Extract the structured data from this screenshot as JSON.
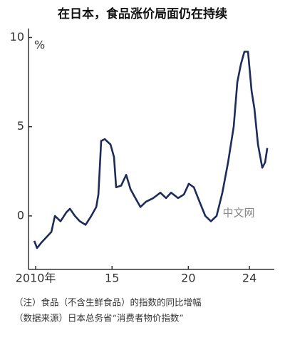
{
  "chart_data": {
    "type": "line",
    "title": "在日本，食品涨价局面仍在持续",
    "y_unit": "%",
    "notes": [
      "（注）食品（不含生鲜食品）的指数的同比增幅",
      "（数据来源）日本总务省“消费者物价指数”"
    ],
    "watermark": "中文网",
    "xlim": [
      2009.53,
      2025.63
    ],
    "xticks": [
      {
        "value": 2010,
        "label": "2010年"
      },
      {
        "value": 2015,
        "label": "15"
      },
      {
        "value": 2020,
        "label": "20"
      },
      {
        "value": 2024,
        "label": "24"
      }
    ],
    "ylim": [
      -3,
      10.5
    ],
    "yticks": [
      0,
      5,
      10
    ],
    "series": [
      {
        "name": "食品",
        "color": "#1c2b5a",
        "x": [
          2009.91,
          2010.09,
          2010.37,
          2010.7,
          2011.03,
          2011.26,
          2011.63,
          2012.01,
          2012.24,
          2012.57,
          2012.89,
          2013.27,
          2013.64,
          2013.97,
          2014.11,
          2014.29,
          2014.53,
          2014.9,
          2015.13,
          2015.27,
          2015.6,
          2015.93,
          2016.21,
          2016.53,
          2016.86,
          2017.23,
          2017.7,
          2018.17,
          2018.54,
          2018.87,
          2019.33,
          2019.71,
          2020.03,
          2020.36,
          2020.73,
          2021.11,
          2021.48,
          2021.85,
          2022.23,
          2022.6,
          2022.97,
          2023.21,
          2023.44,
          2023.67,
          2023.91,
          2024.14,
          2024.33,
          2024.56,
          2024.84,
          2025.03,
          2025.17
        ],
        "values": [
          -1.4,
          -1.8,
          -1.5,
          -1.2,
          -0.9,
          0.0,
          -0.3,
          0.2,
          0.4,
          0.0,
          -0.3,
          -0.5,
          0.0,
          0.5,
          1.2,
          4.2,
          4.3,
          4.0,
          3.3,
          1.6,
          1.7,
          2.3,
          1.5,
          1.0,
          0.5,
          0.8,
          1.0,
          1.3,
          1.0,
          1.3,
          1.0,
          1.2,
          1.8,
          1.6,
          0.8,
          0.0,
          -0.3,
          0.0,
          1.3,
          3.0,
          5.0,
          7.5,
          8.5,
          9.2,
          9.2,
          7.0,
          6.0,
          4.0,
          2.7,
          3.0,
          3.8
        ]
      }
    ]
  }
}
